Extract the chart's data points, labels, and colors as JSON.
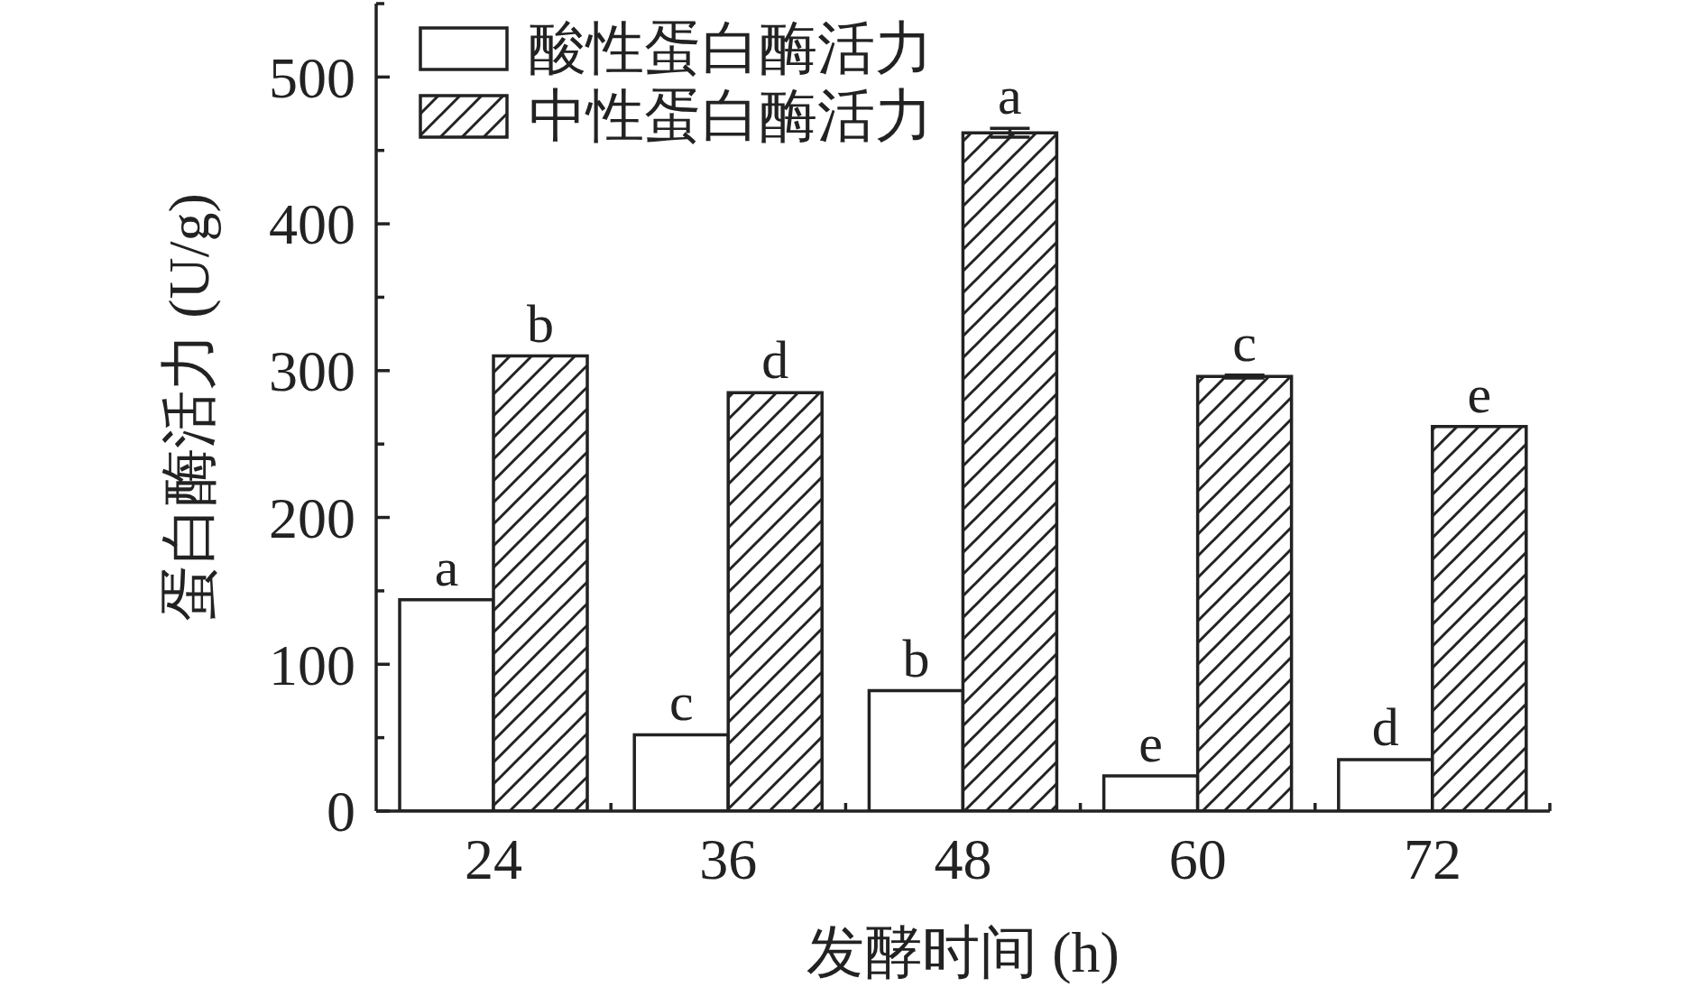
{
  "chart_data": {
    "type": "bar",
    "categories": [
      "24",
      "36",
      "48",
      "60",
      "72"
    ],
    "xlabel": "发酵时间 (h)",
    "ylabel": "蛋白酶活力 (U/g)",
    "series": [
      {
        "name": "酸性蛋白酶活力",
        "color": "#ffffff",
        "values": [
          144,
          52,
          82,
          24,
          35
        ],
        "value_labels": [
          "a",
          "c",
          "b",
          "e",
          "d"
        ]
      },
      {
        "name": "中性蛋白酶活力",
        "color": "#222222",
        "values": [
          310,
          285,
          462,
          296,
          262
        ],
        "errors": [
          null,
          null,
          3,
          1,
          null
        ],
        "value_labels": [
          "b",
          "d",
          "a",
          "c",
          "e"
        ]
      }
    ],
    "ylim": [
      0,
      550
    ],
    "yticks": [
      0,
      {
        "value": 50,
        "label": null
      },
      100,
      {
        "value": 150,
        "label": null
      },
      200,
      {
        "value": 250,
        "label": null
      },
      300,
      {
        "value": 350,
        "label": null
      },
      400,
      {
        "value": 450,
        "label": null
      },
      500,
      {
        "value": 550,
        "label": null
      }
    ],
    "legend": "top left"
  }
}
